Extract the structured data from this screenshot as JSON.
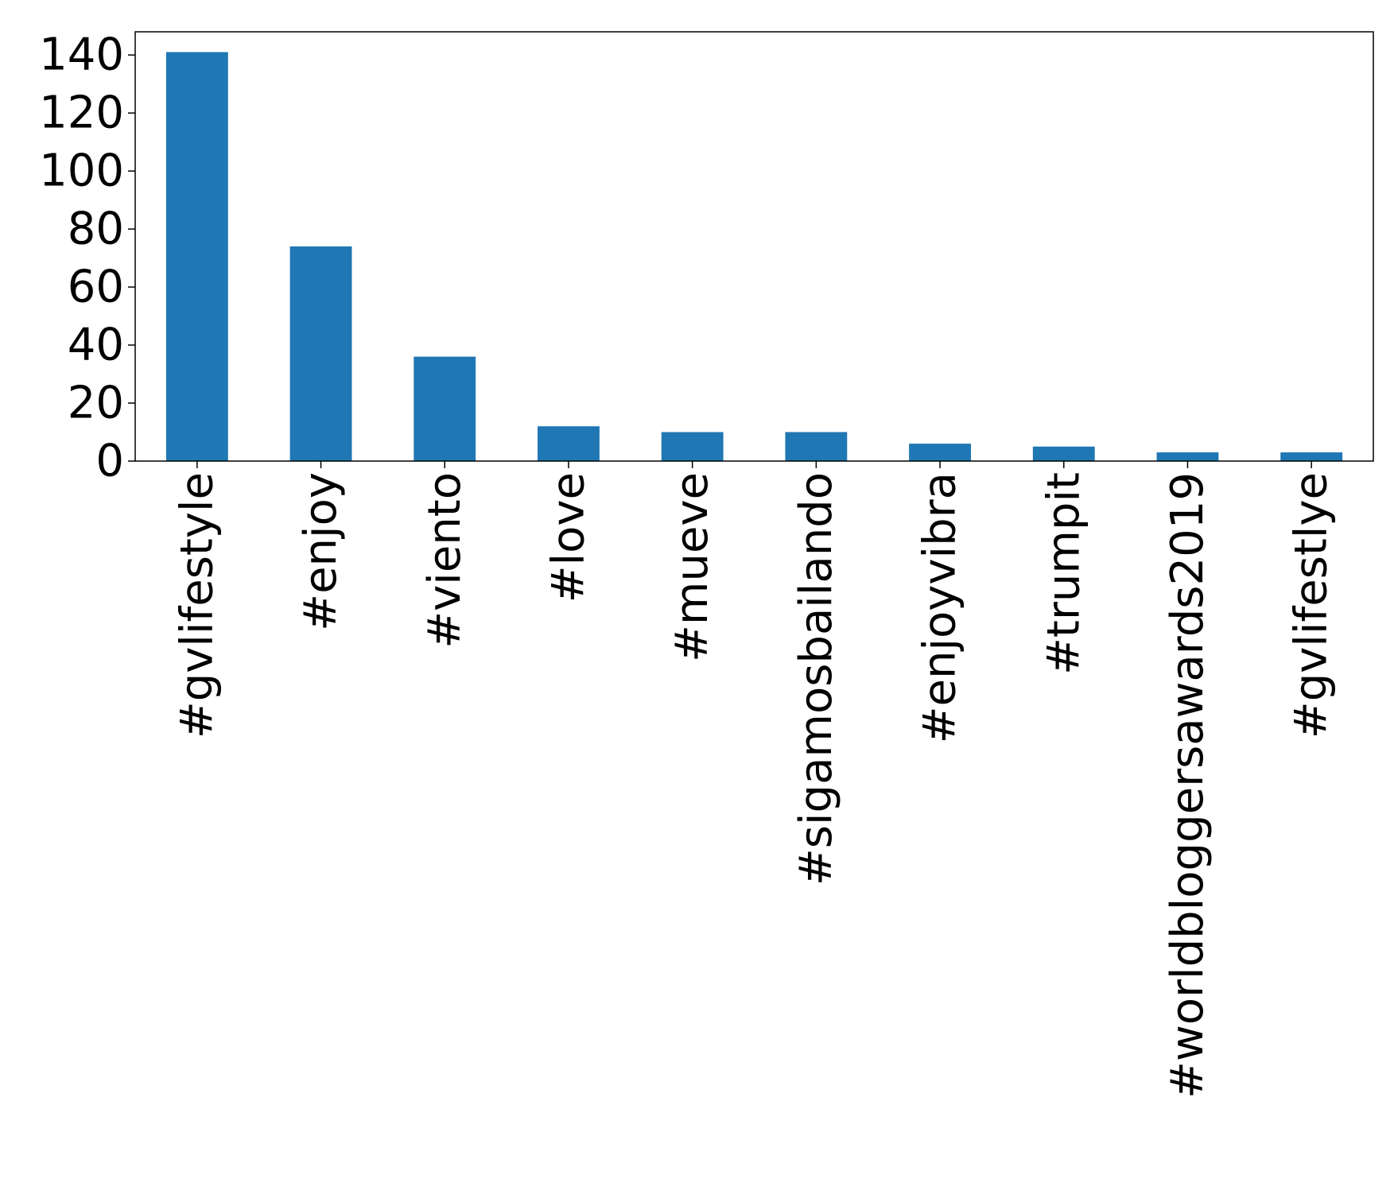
{
  "chart_data": {
    "type": "bar",
    "categories": [
      "#gvlifestyle",
      "#enjoy",
      "#viento",
      "#love",
      "#mueve",
      "#sigamosbailando",
      "#enjoyvibra",
      "#trumpit",
      "#worldbloggersawards2019",
      "#gvlifestlye"
    ],
    "values": [
      141,
      74,
      36,
      12,
      10,
      10,
      6,
      5,
      3,
      3
    ],
    "title": "",
    "xlabel": "",
    "ylabel": "",
    "ylim": [
      0,
      148
    ],
    "yticks": [
      0,
      20,
      40,
      60,
      80,
      100,
      120,
      140
    ],
    "bar_color": "#1f77b4",
    "grid": false,
    "legend": "none"
  }
}
